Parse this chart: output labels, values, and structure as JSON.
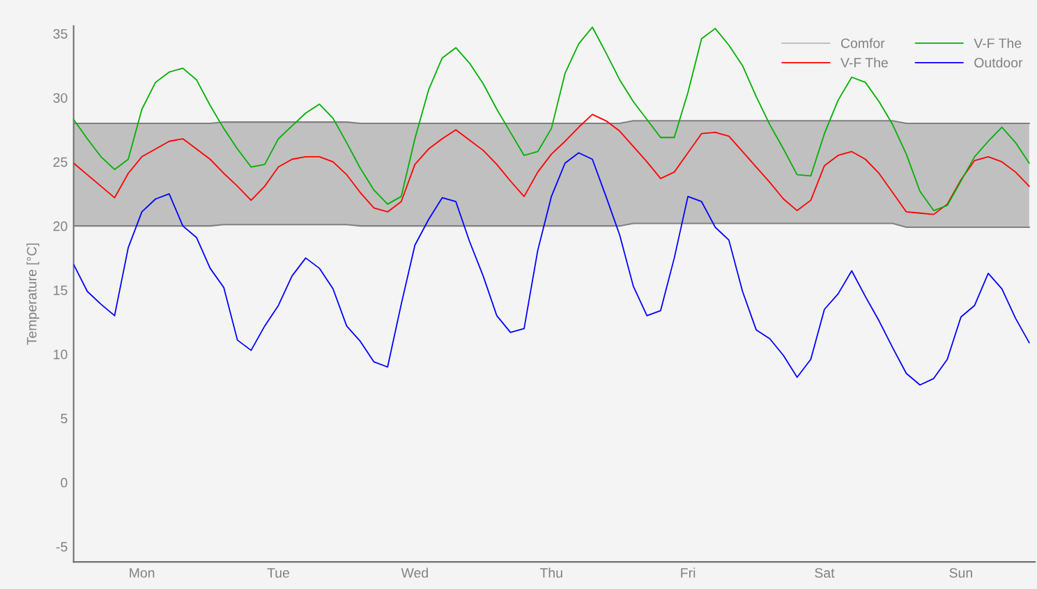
{
  "chart_data": {
    "type": "line",
    "ylabel": "Temperature [°C]",
    "categories": [
      null,
      null,
      null,
      null,
      null,
      "Mon",
      null,
      null,
      null,
      null,
      null,
      null,
      null,
      null,
      null,
      "Tue",
      null,
      null,
      null,
      null,
      null,
      null,
      null,
      null,
      null,
      "Wed",
      null,
      null,
      null,
      null,
      null,
      null,
      null,
      null,
      null,
      "Thu",
      null,
      null,
      null,
      null,
      null,
      null,
      null,
      null,
      null,
      "Fri",
      null,
      null,
      null,
      null,
      null,
      null,
      null,
      null,
      null,
      "Sat",
      null,
      null,
      null,
      null,
      null,
      null,
      null,
      null,
      null,
      "Sun",
      null,
      null,
      null,
      null,
      null
    ],
    "ylim": [
      -6.2,
      35.6
    ],
    "yticks": [
      -5,
      0,
      5,
      10,
      15,
      20,
      25,
      30,
      35
    ],
    "grid": false,
    "legend": "top right",
    "line_style": "solid",
    "marker": "none",
    "series": [
      {
        "type": "line",
        "color": "#808080",
        "values": [
          20.0,
          20.0,
          20.0,
          20.0,
          20.0,
          20.0,
          20.0,
          20.0,
          20.0,
          20.0,
          20.0,
          20.1,
          20.1,
          20.1,
          20.1,
          20.1,
          20.1,
          20.1,
          20.1,
          20.1,
          20.1,
          20.0,
          20.0,
          20.0,
          20.0,
          20.0,
          20.0,
          20.0,
          20.0,
          20.0,
          20.0,
          20.0,
          20.0,
          20.0,
          20.0,
          20.0,
          20.0,
          20.0,
          20.0,
          20.0,
          20.0,
          20.2,
          20.2,
          20.2,
          20.2,
          20.2,
          20.2,
          20.2,
          20.2,
          20.2,
          20.2,
          20.2,
          20.2,
          20.2,
          20.2,
          20.2,
          20.2,
          20.2,
          20.2,
          20.2,
          20.2,
          19.9,
          19.9,
          19.9,
          19.9,
          19.9,
          19.9,
          19.9,
          19.9,
          19.9,
          19.9
        ]
      },
      {
        "name": "Comfor",
        "type": "area",
        "color": "#808080",
        "values": [
          28.0,
          28.0,
          28.0,
          28.0,
          28.0,
          28.0,
          28.0,
          28.0,
          28.0,
          28.0,
          28.0,
          28.1,
          28.1,
          28.1,
          28.1,
          28.1,
          28.1,
          28.1,
          28.1,
          28.1,
          28.1,
          28.0,
          28.0,
          28.0,
          28.0,
          28.0,
          28.0,
          28.0,
          28.0,
          28.0,
          28.0,
          28.0,
          28.0,
          28.0,
          28.0,
          28.0,
          28.0,
          28.0,
          28.0,
          28.0,
          28.0,
          28.2,
          28.2,
          28.2,
          28.2,
          28.2,
          28.2,
          28.2,
          28.2,
          28.2,
          28.2,
          28.2,
          28.2,
          28.2,
          28.2,
          28.2,
          28.2,
          28.2,
          28.2,
          28.2,
          28.2,
          28.0,
          28.0,
          28.0,
          28.0,
          28.0,
          28.0,
          28.0,
          28.0,
          28.0,
          28.0
        ]
      },
      {
        "name": "V-F The",
        "color": "#ff0000",
        "values": [
          24.9,
          24.0,
          23.1,
          22.2,
          24.1,
          25.4,
          26.0,
          26.6,
          26.8,
          26.0,
          25.2,
          24.1,
          23.1,
          22.0,
          23.1,
          24.6,
          25.2,
          25.4,
          25.4,
          25.0,
          24.0,
          22.6,
          21.4,
          21.1,
          21.9,
          24.8,
          26.0,
          26.8,
          27.5,
          26.7,
          25.9,
          24.8,
          23.5,
          22.3,
          24.2,
          25.6,
          26.6,
          27.7,
          28.7,
          28.2,
          27.4,
          26.2,
          25.0,
          23.7,
          24.2,
          25.7,
          27.2,
          27.3,
          27.0,
          25.8,
          24.6,
          23.4,
          22.1,
          21.2,
          22.0,
          24.7,
          25.5,
          25.8,
          25.2,
          24.1,
          22.6,
          21.1,
          21.0,
          20.9,
          21.7,
          23.6,
          25.1,
          25.4,
          25.0,
          24.2,
          23.1
        ]
      },
      {
        "name": "V-F The",
        "color": "#00b000",
        "values": [
          28.3,
          26.8,
          25.4,
          24.4,
          25.2,
          29.1,
          31.2,
          32.0,
          32.3,
          31.4,
          29.4,
          27.6,
          26.0,
          24.6,
          24.8,
          26.8,
          27.8,
          28.8,
          29.5,
          28.4,
          26.5,
          24.5,
          22.8,
          21.7,
          22.3,
          26.8,
          30.6,
          33.1,
          33.9,
          32.7,
          31.1,
          29.1,
          27.3,
          25.5,
          25.8,
          27.6,
          31.9,
          34.2,
          35.5,
          33.5,
          31.4,
          29.7,
          28.3,
          26.9,
          26.9,
          30.4,
          34.6,
          35.4,
          34.1,
          32.5,
          30.1,
          27.9,
          26.0,
          24.0,
          23.9,
          27.2,
          29.8,
          31.6,
          31.2,
          29.7,
          27.9,
          25.6,
          22.7,
          21.2,
          21.6,
          23.5,
          25.4,
          26.6,
          27.7,
          26.5,
          24.9
        ]
      },
      {
        "name": "Outdoor",
        "color": "#0000ff",
        "values": [
          17.0,
          14.9,
          13.9,
          13.0,
          18.3,
          21.1,
          22.1,
          22.5,
          20.0,
          19.1,
          16.7,
          15.2,
          11.1,
          10.3,
          12.2,
          13.8,
          16.1,
          17.5,
          16.7,
          15.1,
          12.2,
          11.0,
          9.4,
          9.0,
          13.9,
          18.5,
          20.5,
          22.2,
          21.9,
          18.8,
          16.1,
          13.0,
          11.7,
          12.0,
          18.1,
          22.3,
          24.9,
          25.7,
          25.2,
          22.3,
          19.3,
          15.3,
          13.0,
          13.4,
          17.5,
          22.3,
          21.9,
          19.9,
          18.9,
          14.9,
          11.9,
          11.2,
          9.9,
          8.2,
          9.6,
          13.5,
          14.7,
          16.5,
          14.5,
          12.6,
          10.5,
          8.5,
          7.6,
          8.1,
          9.6,
          12.9,
          13.8,
          16.3,
          15.1,
          12.8,
          10.9
        ]
      }
    ]
  }
}
